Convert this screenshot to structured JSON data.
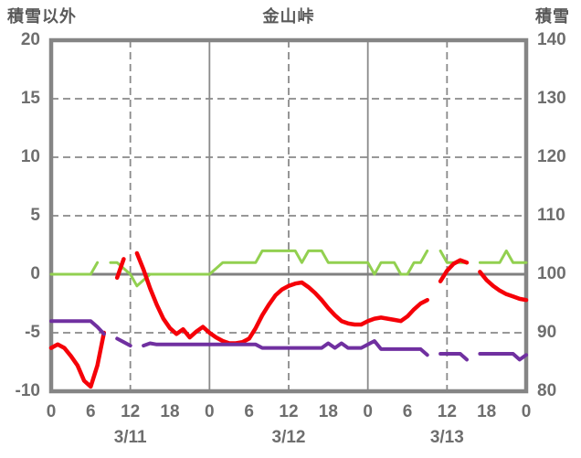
{
  "header": {
    "left_axis_title": "積雪以外",
    "chart_title": "金山峠",
    "right_axis_title": "積雪"
  },
  "colors": {
    "red": "#f50008",
    "green": "#92d050",
    "purple": "#7030a0",
    "frame": "#858585",
    "grid": "#8a8a8a",
    "zero_line": "#808080",
    "text": "#6e6e6e",
    "background": "#ffffff"
  },
  "chart_data": {
    "type": "line",
    "title": "金山峠",
    "x_unit": "hour offset from 3/11 00:00, hourly samples, null = missing data",
    "x_range": [
      0,
      72
    ],
    "left_axis": {
      "title": "積雪以外",
      "range": [
        -10,
        20
      ],
      "ticks": [
        20,
        15,
        10,
        5,
        0,
        -5,
        -10
      ]
    },
    "right_axis": {
      "title": "積雪",
      "range": [
        80,
        140
      ],
      "ticks": [
        140,
        130,
        120,
        110,
        100,
        90,
        80
      ]
    },
    "x_axis": {
      "hour_tick_step": 6,
      "hour_labels": [
        "0",
        "6",
        "12",
        "18",
        "0",
        "6",
        "12",
        "18",
        "0",
        "6",
        "12",
        "18",
        "0"
      ],
      "date_labels": [
        {
          "label": "3/11",
          "hour": 12
        },
        {
          "label": "3/12",
          "hour": 36
        },
        {
          "label": "3/13",
          "hour": 60
        }
      ]
    },
    "grid": {
      "v_solid_hours": [
        24,
        48
      ],
      "v_dashed_hours": [
        12,
        36,
        60
      ],
      "h_dashed_values": [
        15,
        10,
        5,
        -5
      ],
      "zero_value": 0
    },
    "legend": "none shown",
    "series": [
      {
        "name": "green",
        "color_key": "green",
        "width": 3,
        "values": [
          0,
          0,
          0,
          0,
          0,
          0,
          0,
          1,
          null,
          1,
          1,
          0.5,
          0,
          -1,
          -0.5,
          0,
          0,
          0,
          0,
          0,
          0,
          0,
          0,
          0,
          0,
          0.5,
          1,
          1,
          1,
          1,
          1,
          1,
          2,
          2,
          2,
          2,
          2,
          2,
          1,
          2,
          2,
          2,
          1,
          1,
          1,
          1,
          1,
          1,
          1,
          0,
          1,
          1,
          1,
          0,
          0,
          1,
          1,
          2,
          null,
          2,
          1,
          1,
          1,
          1,
          null,
          1,
          1,
          1,
          1,
          2,
          1,
          1,
          1
        ]
      },
      {
        "name": "red",
        "color_key": "red",
        "width": 4.5,
        "values": [
          -6.3,
          -6.0,
          -6.3,
          -7.0,
          -7.8,
          -9.1,
          -9.6,
          -7.8,
          -5.0,
          null,
          -0.3,
          1.3,
          null,
          1.8,
          0.4,
          -1.2,
          -2.6,
          -3.8,
          -4.6,
          -5.1,
          -4.7,
          -5.4,
          -4.9,
          -4.5,
          -5.0,
          -5.4,
          -5.7,
          -5.9,
          -5.9,
          -5.8,
          -5.5,
          -4.6,
          -3.5,
          -2.6,
          -1.8,
          -1.3,
          -1.0,
          -0.8,
          -0.7,
          -1.1,
          -1.6,
          -2.2,
          -2.9,
          -3.5,
          -4.0,
          -4.2,
          -4.3,
          -4.3,
          -4.0,
          -3.8,
          -3.7,
          -3.8,
          -3.9,
          -4.0,
          -3.6,
          -3.0,
          -2.5,
          -2.2,
          null,
          -0.6,
          0.3,
          0.9,
          1.2,
          1.0,
          null,
          0.2,
          -0.5,
          -1.0,
          -1.4,
          -1.7,
          -1.9,
          -2.1,
          -2.2
        ]
      },
      {
        "name": "purple",
        "color_key": "purple",
        "width": 4,
        "values": [
          -4,
          -4,
          -4,
          -4,
          -4,
          -4,
          -4,
          -4.5,
          -5.1,
          null,
          -5.5,
          -5.8,
          -6.1,
          null,
          -6.1,
          -5.9,
          -6,
          -6,
          -6,
          -6,
          -6,
          -6,
          -6,
          -6,
          -6,
          -6,
          -6,
          -6,
          -6,
          -6,
          -6,
          -6,
          -6.3,
          -6.3,
          -6.3,
          -6.3,
          -6.3,
          -6.3,
          -6.3,
          -6.3,
          -6.3,
          -6.3,
          -5.9,
          -6.3,
          -5.9,
          -6.3,
          -6.3,
          -6.3,
          -6,
          -5.7,
          -6.4,
          -6.4,
          -6.4,
          -6.4,
          -6.4,
          -6.4,
          -6.4,
          -6.9,
          null,
          -6.8,
          -6.8,
          -6.8,
          -6.8,
          -7.3,
          null,
          -6.8,
          -6.8,
          -6.8,
          -6.8,
          -6.8,
          -6.8,
          -7.3,
          -6.9
        ]
      }
    ]
  }
}
